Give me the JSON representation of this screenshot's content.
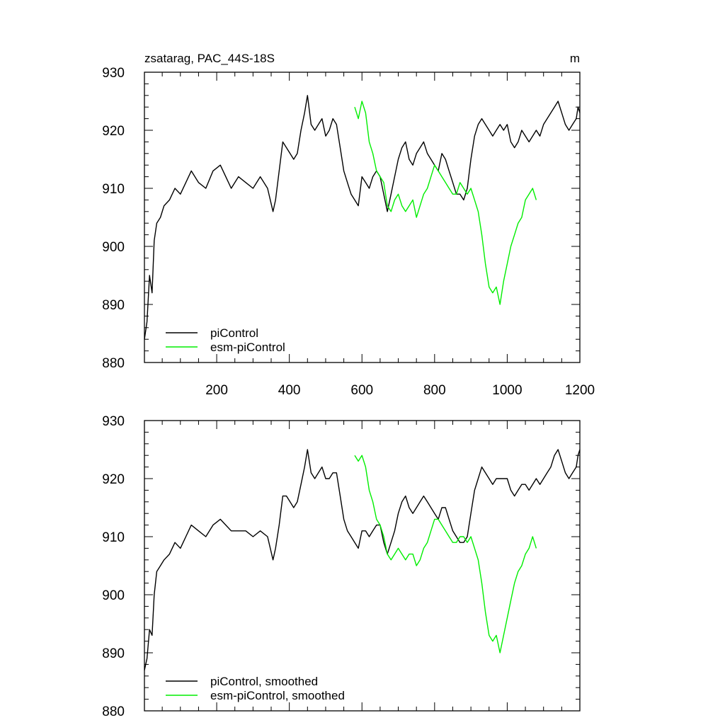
{
  "chart_data": [
    {
      "type": "line",
      "title": "zsatarag, PAC_44S-18S",
      "units": "m",
      "xlabel": "",
      "ylabel": "",
      "xlim": [
        1,
        1200
      ],
      "ylim": [
        880,
        930
      ],
      "x_ticks": [
        200,
        400,
        600,
        800,
        1000,
        1200
      ],
      "y_ticks": [
        880,
        890,
        900,
        910,
        920,
        930
      ],
      "grid": false,
      "legend": "bottom-left",
      "series": [
        {
          "name": "piControl",
          "color": "#000000",
          "x": [
            1,
            8,
            15,
            22,
            28,
            35,
            45,
            55,
            70,
            85,
            100,
            115,
            130,
            150,
            170,
            190,
            210,
            225,
            240,
            260,
            280,
            300,
            320,
            340,
            355,
            362,
            372,
            382,
            392,
            402,
            412,
            422,
            432,
            442,
            450,
            460,
            470,
            480,
            490,
            500,
            510,
            520,
            530,
            540,
            550,
            560,
            570,
            580,
            590,
            600,
            610,
            620,
            630,
            640,
            650,
            660,
            670,
            680,
            690,
            700,
            710,
            720,
            730,
            740,
            750,
            760,
            770,
            780,
            790,
            800,
            810,
            820,
            830,
            840,
            850,
            860,
            870,
            880,
            890,
            900,
            910,
            920,
            930,
            940,
            950,
            960,
            970,
            980,
            990,
            1000,
            1010,
            1020,
            1030,
            1040,
            1050,
            1060,
            1070,
            1080,
            1090,
            1100,
            1110,
            1120,
            1130,
            1140,
            1150,
            1160,
            1170,
            1180,
            1190,
            1195,
            1200
          ],
          "values": [
            884,
            887,
            895,
            892,
            901,
            904,
            905,
            907,
            908,
            910,
            909,
            911,
            913,
            911,
            910,
            913,
            914,
            912,
            910,
            912,
            911,
            910,
            912,
            910,
            906,
            908,
            913,
            918,
            917,
            916,
            915,
            916,
            920,
            923,
            926,
            921,
            920,
            921,
            922,
            919,
            920,
            922,
            921,
            917,
            913,
            911,
            909,
            908,
            907,
            912,
            911,
            910,
            912,
            913,
            912,
            909,
            906,
            909,
            912,
            915,
            917,
            918,
            915,
            914,
            916,
            917,
            918,
            916,
            915,
            914,
            913,
            916,
            915,
            913,
            911,
            909,
            909,
            908,
            910,
            915,
            919,
            921,
            922,
            921,
            920,
            919,
            920,
            921,
            920,
            921,
            918,
            917,
            918,
            920,
            919,
            918,
            919,
            920,
            919,
            921,
            922,
            923,
            924,
            925,
            923,
            921,
            920,
            921,
            922,
            924,
            923
          ]
        },
        {
          "name": "esm-piControl",
          "color": "#00ee00",
          "x": [
            580,
            590,
            600,
            610,
            620,
            630,
            640,
            650,
            660,
            670,
            680,
            690,
            700,
            710,
            720,
            730,
            740,
            750,
            760,
            770,
            780,
            790,
            800,
            810,
            820,
            830,
            840,
            850,
            860,
            870,
            880,
            890,
            900,
            910,
            920,
            930,
            940,
            950,
            960,
            970,
            980,
            990,
            1000,
            1010,
            1020,
            1030,
            1040,
            1050,
            1060,
            1070,
            1080
          ],
          "values": [
            924,
            922,
            925,
            923,
            918,
            916,
            913,
            912,
            911,
            907,
            906,
            908,
            909,
            907,
            906,
            907,
            908,
            905,
            907,
            909,
            910,
            912,
            914,
            913,
            912,
            911,
            910,
            909,
            909,
            911,
            910,
            909,
            910,
            908,
            906,
            902,
            897,
            893,
            892,
            893,
            890,
            894,
            897,
            900,
            902,
            904,
            905,
            908,
            909,
            910,
            908
          ]
        }
      ]
    },
    {
      "type": "line",
      "title": "",
      "xlabel": "",
      "ylabel": "",
      "xlim": [
        1,
        1200
      ],
      "ylim": [
        880,
        930
      ],
      "y_ticks": [
        880,
        890,
        900,
        910,
        920,
        930
      ],
      "grid": false,
      "legend": "bottom-left",
      "series": [
        {
          "name": "piControl, smoothed",
          "color": "#000000",
          "x": [
            1,
            8,
            15,
            22,
            28,
            35,
            45,
            55,
            70,
            85,
            100,
            115,
            130,
            150,
            170,
            190,
            210,
            225,
            240,
            260,
            280,
            300,
            320,
            340,
            355,
            362,
            372,
            382,
            392,
            402,
            412,
            422,
            432,
            442,
            450,
            460,
            470,
            480,
            490,
            500,
            510,
            520,
            530,
            540,
            550,
            560,
            570,
            580,
            590,
            600,
            610,
            620,
            630,
            640,
            650,
            660,
            670,
            680,
            690,
            700,
            710,
            720,
            730,
            740,
            750,
            760,
            770,
            780,
            790,
            800,
            810,
            820,
            830,
            840,
            850,
            860,
            870,
            880,
            890,
            900,
            910,
            920,
            930,
            940,
            950,
            960,
            970,
            980,
            990,
            1000,
            1010,
            1020,
            1030,
            1040,
            1050,
            1060,
            1070,
            1080,
            1090,
            1100,
            1110,
            1120,
            1130,
            1140,
            1150,
            1160,
            1170,
            1180,
            1190,
            1195,
            1200
          ],
          "values": [
            887,
            889,
            894,
            893,
            900,
            904,
            905,
            906,
            907,
            909,
            908,
            910,
            912,
            911,
            910,
            912,
            913,
            912,
            911,
            911,
            911,
            910,
            911,
            910,
            906,
            908,
            912,
            917,
            917,
            916,
            915,
            916,
            919,
            922,
            925,
            921,
            920,
            921,
            922,
            920,
            920,
            921,
            921,
            917,
            913,
            911,
            910,
            909,
            908,
            911,
            911,
            910,
            911,
            912,
            912,
            909,
            907,
            909,
            911,
            914,
            916,
            917,
            915,
            914,
            915,
            916,
            917,
            916,
            915,
            914,
            913,
            915,
            915,
            913,
            911,
            910,
            909,
            909,
            910,
            914,
            918,
            920,
            922,
            921,
            920,
            919,
            920,
            920,
            920,
            920,
            918,
            917,
            918,
            919,
            919,
            918,
            919,
            920,
            919,
            920,
            921,
            922,
            924,
            925,
            923,
            921,
            920,
            921,
            922,
            924,
            925
          ]
        },
        {
          "name": "esm-piControl, smoothed",
          "color": "#00ee00",
          "x": [
            580,
            590,
            600,
            610,
            620,
            630,
            640,
            650,
            660,
            670,
            680,
            690,
            700,
            710,
            720,
            730,
            740,
            750,
            760,
            770,
            780,
            790,
            800,
            810,
            820,
            830,
            840,
            850,
            860,
            870,
            880,
            890,
            900,
            910,
            920,
            930,
            940,
            950,
            960,
            970,
            980,
            990,
            1000,
            1010,
            1020,
            1030,
            1040,
            1050,
            1060,
            1070,
            1080
          ],
          "values": [
            924,
            923,
            924,
            922,
            918,
            916,
            913,
            912,
            910,
            907,
            906,
            907,
            908,
            907,
            906,
            907,
            907,
            905,
            906,
            908,
            909,
            911,
            913,
            913,
            912,
            911,
            910,
            909,
            909,
            910,
            910,
            909,
            910,
            908,
            906,
            902,
            897,
            893,
            892,
            893,
            890,
            893,
            896,
            899,
            902,
            904,
            905,
            907,
            908,
            910,
            908
          ]
        }
      ]
    }
  ]
}
